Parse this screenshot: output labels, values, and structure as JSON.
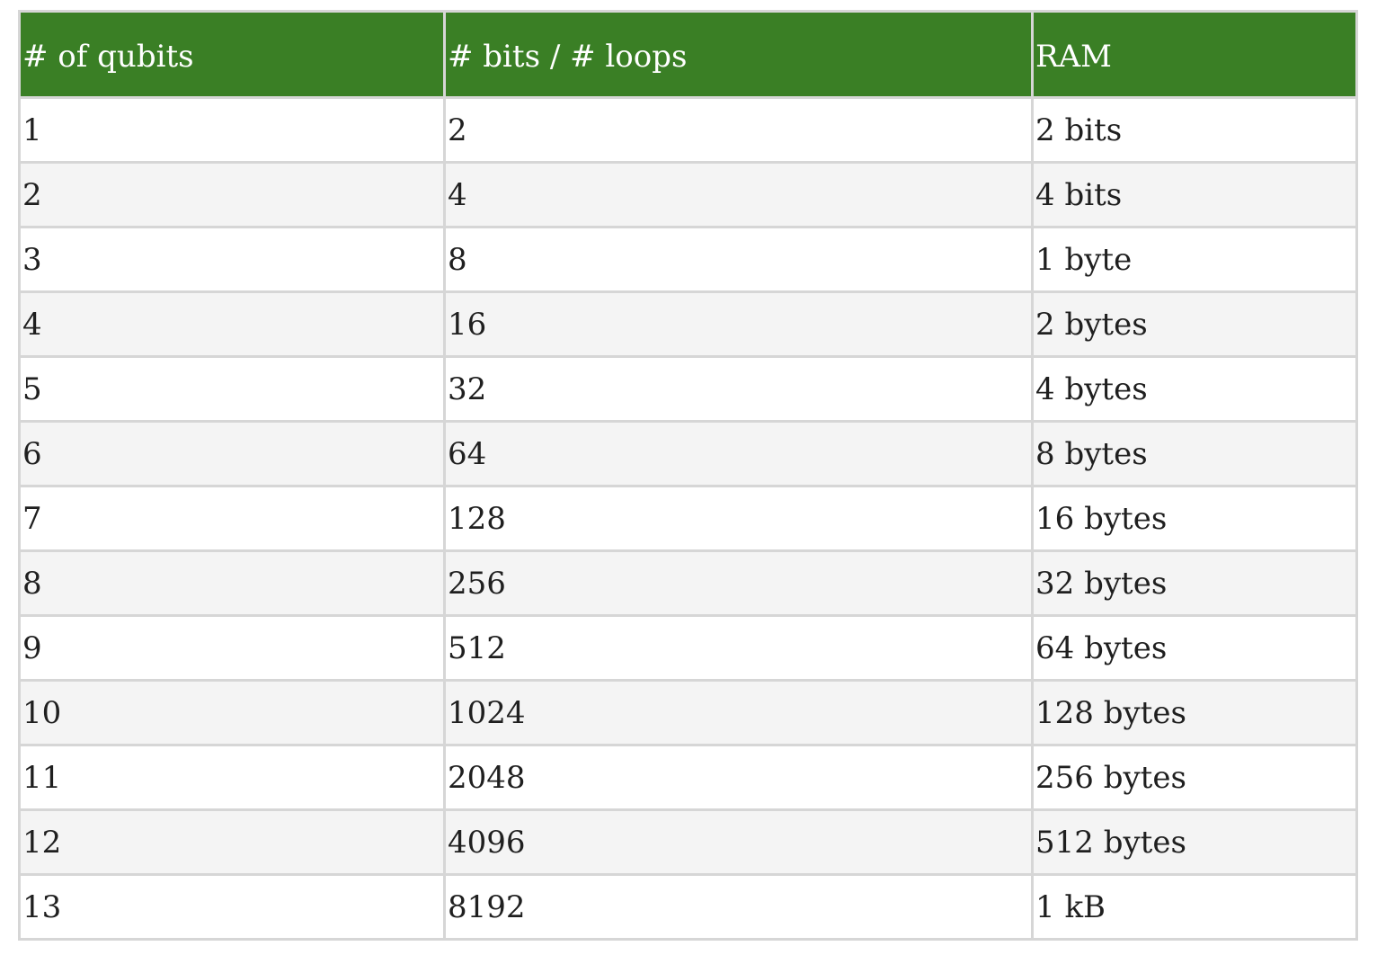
{
  "table": {
    "headers": [
      "# of qubits",
      "# bits / # loops",
      "RAM"
    ],
    "rows": [
      [
        "1",
        "2",
        "2 bits"
      ],
      [
        "2",
        "4",
        "4 bits"
      ],
      [
        "3",
        "8",
        "1 byte"
      ],
      [
        "4",
        "16",
        "2 bytes"
      ],
      [
        "5",
        "32",
        "4 bytes"
      ],
      [
        "6",
        "64",
        "8 bytes"
      ],
      [
        "7",
        "128",
        "16 bytes"
      ],
      [
        "8",
        "256",
        "32 bytes"
      ],
      [
        "9",
        "512",
        "64 bytes"
      ],
      [
        "10",
        "1024",
        "128 bytes"
      ],
      [
        "11",
        "2048",
        "256 bytes"
      ],
      [
        "12",
        "4096",
        "512 bytes"
      ],
      [
        "13",
        "8192",
        "1 kB"
      ]
    ]
  },
  "colors": {
    "header_bg": "#3a7f25",
    "header_text": "#ffffff",
    "row_alt_bg": "#f4f4f4",
    "border": "#d6d6d6"
  }
}
